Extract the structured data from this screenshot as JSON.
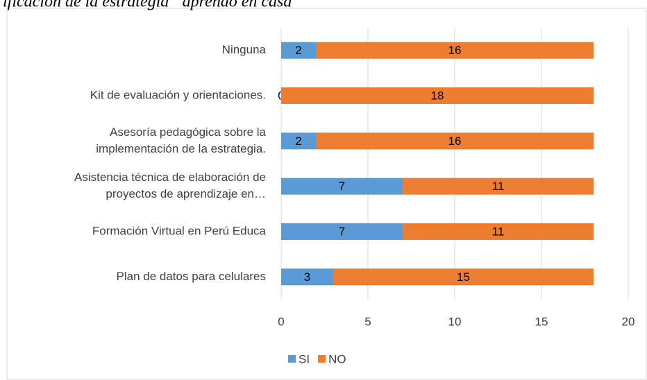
{
  "chart_data": {
    "type": "stacked-bar-horizontal",
    "title": "ificación de la estrategia “aprendo en casa”",
    "categories": [
      [
        "Ninguna"
      ],
      [
        "Kit de evaluación y orientaciones."
      ],
      [
        "Asesoría pedagógica sobre la",
        "implementación de la estrategia."
      ],
      [
        "Asistencia técnica de elaboración de",
        "proyectos de aprendizaje en…"
      ],
      [
        "Formación Virtual en Perú Educa"
      ],
      [
        "Plan de datos para celulares"
      ]
    ],
    "series": [
      {
        "name": "SI",
        "color": "#5b9bd5",
        "values": [
          2,
          0,
          2,
          7,
          7,
          3
        ]
      },
      {
        "name": "NO",
        "color": "#ed7d31",
        "values": [
          16,
          18,
          16,
          11,
          11,
          15
        ]
      }
    ],
    "xlim": [
      0,
      20
    ],
    "xticks": [
      0,
      5,
      10,
      15,
      20
    ],
    "grid": true,
    "legend": "bottom"
  }
}
